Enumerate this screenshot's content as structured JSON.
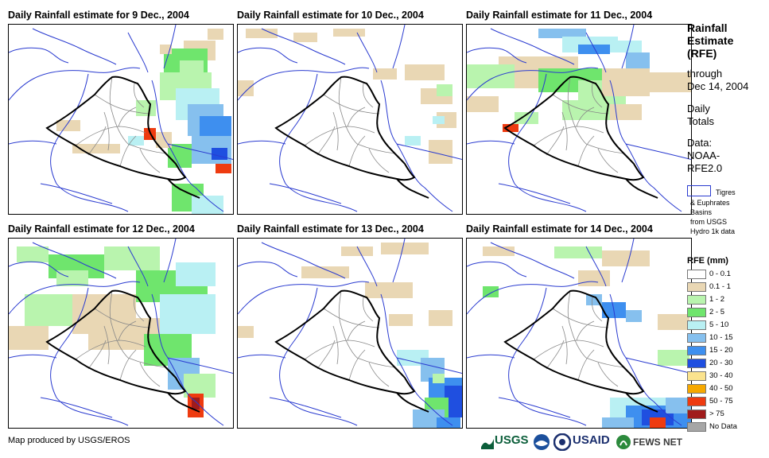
{
  "panels": [
    {
      "title": "Daily Rainfall estimate for 9 Dec., 2004"
    },
    {
      "title": "Daily Rainfall estimate for 10 Dec., 2004"
    },
    {
      "title": "Daily Rainfall estimate for 11 Dec., 2004"
    },
    {
      "title": "Daily Rainfall estimate for 12 Dec., 2004"
    },
    {
      "title": "Daily Rainfall estimate for 13 Dec., 2004"
    },
    {
      "title": "Daily Rainfall estimate for 14 Dec., 2004"
    }
  ],
  "sidebar": {
    "title_lines": [
      "Rainfall",
      "Estimate",
      "(RFE)"
    ],
    "through_lines": [
      "through",
      "Dec 14, 2004"
    ],
    "daily_lines": [
      "Daily",
      "Totals"
    ],
    "data_lines": [
      "Data:",
      "NOAA-",
      "RFE2.0"
    ],
    "basin_lines": [
      "Tigres",
      "& Euphrates",
      "Basins",
      "from USGS",
      "Hydro 1k data"
    ]
  },
  "legend": {
    "title": "RFE (mm)",
    "items": [
      {
        "label": "0 - 0.1",
        "color": "#ffffff"
      },
      {
        "label": "0.1 - 1",
        "color": "#e9d7b4"
      },
      {
        "label": "1 - 2",
        "color": "#b9f4ae"
      },
      {
        "label": "2 - 5",
        "color": "#6fe56d"
      },
      {
        "label": "5 - 10",
        "color": "#b9f0f3"
      },
      {
        "label": "10 - 15",
        "color": "#86c0ee"
      },
      {
        "label": "15 - 20",
        "color": "#3e8fef"
      },
      {
        "label": "20 - 30",
        "color": "#1f4fe0"
      },
      {
        "label": "30 - 40",
        "color": "#fbe38e"
      },
      {
        "label": "40 - 50",
        "color": "#f6a800"
      },
      {
        "label": "50 - 75",
        "color": "#ee3b10"
      },
      {
        "label": "> 75",
        "color": "#a01b1b"
      },
      {
        "label": "No Data",
        "color": "#a6a6a6"
      }
    ]
  },
  "footer": {
    "credit": "Map produced by USGS/EROS"
  },
  "logos": {
    "usgs": "USGS",
    "usaid": "USAID",
    "fews": "FEWS NET"
  },
  "colors": {
    "border": "#000000",
    "province": "#888888",
    "river": "#2a3bd0"
  }
}
